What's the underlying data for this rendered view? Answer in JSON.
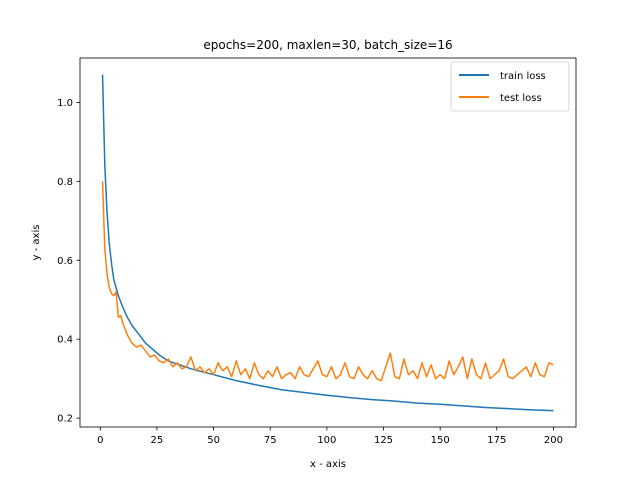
{
  "chart_data": {
    "type": "line",
    "title": "epochs=200, maxlen=30, batch_size=16",
    "xlabel": "x - axis",
    "ylabel": "y - axis",
    "xlim": [
      -8.95,
      209.95
    ],
    "ylim": [
      0.1775,
      1.1125
    ],
    "xticks": [
      0,
      25,
      50,
      75,
      100,
      125,
      150,
      175,
      200
    ],
    "yticks": [
      0.2,
      0.4,
      0.6,
      0.8,
      1.0
    ],
    "ytick_labels": [
      "0.2",
      "0.4",
      "0.6",
      "0.8",
      "1.0"
    ],
    "grid": false,
    "legend": "top-right",
    "series": [
      {
        "name": "train loss",
        "color": "#1f77b4",
        "x": [
          1,
          2,
          3,
          4,
          5,
          6,
          8,
          10,
          12,
          14,
          16,
          18,
          20,
          23,
          26,
          30,
          35,
          40,
          50,
          60,
          70,
          80,
          90,
          100,
          110,
          120,
          130,
          140,
          150,
          160,
          170,
          180,
          190,
          200
        ],
        "y": [
          1.07,
          0.84,
          0.72,
          0.64,
          0.59,
          0.55,
          0.51,
          0.48,
          0.455,
          0.435,
          0.42,
          0.405,
          0.39,
          0.375,
          0.36,
          0.345,
          0.335,
          0.325,
          0.31,
          0.295,
          0.283,
          0.272,
          0.265,
          0.258,
          0.252,
          0.247,
          0.243,
          0.238,
          0.235,
          0.231,
          0.227,
          0.224,
          0.221,
          0.219
        ]
      },
      {
        "name": "test loss",
        "color": "#ff7f0e",
        "x": [
          1,
          2,
          3,
          4,
          5,
          6,
          7,
          8,
          9,
          10,
          12,
          14,
          16,
          18,
          20,
          22,
          24,
          26,
          28,
          30,
          32,
          34,
          36,
          38,
          40,
          42,
          44,
          46,
          48,
          50,
          52,
          54,
          56,
          58,
          60,
          62,
          64,
          66,
          68,
          70,
          72,
          74,
          76,
          78,
          80,
          82,
          84,
          86,
          88,
          90,
          92,
          94,
          96,
          98,
          100,
          102,
          104,
          106,
          108,
          110,
          112,
          114,
          116,
          118,
          120,
          122,
          124,
          126,
          128,
          130,
          132,
          134,
          136,
          138,
          140,
          142,
          144,
          146,
          148,
          150,
          152,
          154,
          156,
          158,
          160,
          162,
          164,
          166,
          168,
          170,
          172,
          174,
          176,
          178,
          180,
          182,
          184,
          186,
          188,
          190,
          192,
          194,
          196,
          198,
          200
        ],
        "y": [
          0.8,
          0.63,
          0.565,
          0.53,
          0.515,
          0.51,
          0.52,
          0.455,
          0.46,
          0.44,
          0.41,
          0.39,
          0.38,
          0.385,
          0.37,
          0.355,
          0.36,
          0.345,
          0.34,
          0.35,
          0.33,
          0.34,
          0.325,
          0.33,
          0.355,
          0.32,
          0.33,
          0.315,
          0.325,
          0.31,
          0.34,
          0.32,
          0.33,
          0.305,
          0.345,
          0.31,
          0.325,
          0.3,
          0.34,
          0.31,
          0.3,
          0.32,
          0.305,
          0.33,
          0.3,
          0.31,
          0.315,
          0.3,
          0.33,
          0.31,
          0.305,
          0.325,
          0.345,
          0.31,
          0.305,
          0.33,
          0.3,
          0.31,
          0.34,
          0.305,
          0.3,
          0.33,
          0.31,
          0.3,
          0.32,
          0.3,
          0.295,
          0.33,
          0.365,
          0.305,
          0.3,
          0.35,
          0.31,
          0.32,
          0.3,
          0.34,
          0.305,
          0.335,
          0.3,
          0.31,
          0.3,
          0.345,
          0.31,
          0.33,
          0.355,
          0.3,
          0.35,
          0.31,
          0.3,
          0.34,
          0.3,
          0.31,
          0.32,
          0.35,
          0.305,
          0.3,
          0.31,
          0.32,
          0.33,
          0.305,
          0.34,
          0.31,
          0.305,
          0.34,
          0.335
        ]
      }
    ]
  }
}
